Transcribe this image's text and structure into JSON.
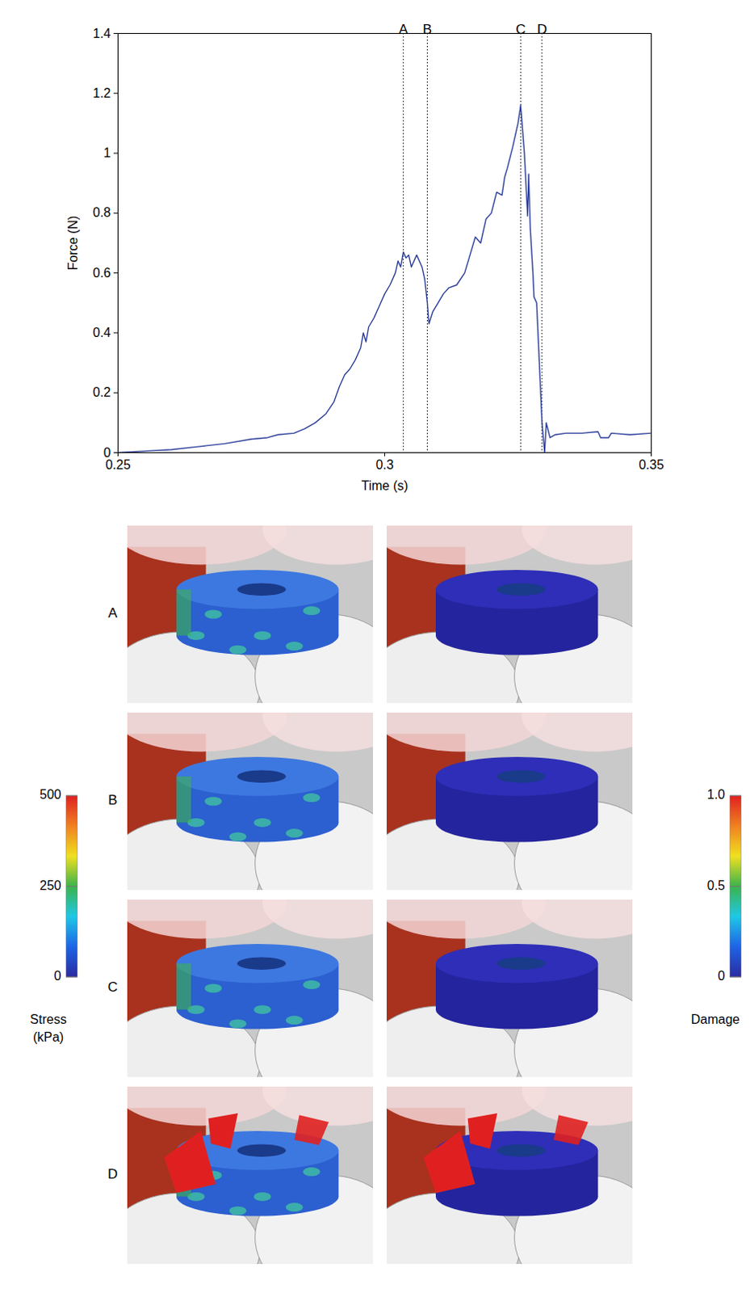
{
  "chart_data": {
    "type": "line",
    "x_label": "Time (s)",
    "y_label": "Force (N)",
    "x": [
      0.25,
      0.255,
      0.26,
      0.265,
      0.27,
      0.275,
      0.278,
      0.28,
      0.283,
      0.285,
      0.287,
      0.289,
      0.2905,
      0.2915,
      0.2925,
      0.2935,
      0.2945,
      0.2955,
      0.296,
      0.2965,
      0.297,
      0.298,
      0.299,
      0.3,
      0.301,
      0.302,
      0.3025,
      0.303,
      0.3035,
      0.304,
      0.3045,
      0.305,
      0.306,
      0.307,
      0.3075,
      0.308,
      0.3083,
      0.309,
      0.31,
      0.311,
      0.312,
      0.3135,
      0.315,
      0.316,
      0.317,
      0.318,
      0.319,
      0.32,
      0.321,
      0.322,
      0.3225,
      0.323,
      0.324,
      0.325,
      0.3255,
      0.3262,
      0.3268,
      0.327,
      0.3273,
      0.3278,
      0.328,
      0.3285,
      0.329,
      0.3295,
      0.33,
      0.3303,
      0.331,
      0.332,
      0.334,
      0.337,
      0.34,
      0.3405,
      0.342,
      0.3425,
      0.346,
      0.35
    ],
    "values": [
      0,
      0.005,
      0.01,
      0.02,
      0.03,
      0.045,
      0.05,
      0.06,
      0.065,
      0.08,
      0.1,
      0.13,
      0.17,
      0.22,
      0.26,
      0.28,
      0.31,
      0.35,
      0.4,
      0.37,
      0.42,
      0.45,
      0.49,
      0.53,
      0.56,
      0.6,
      0.64,
      0.62,
      0.67,
      0.65,
      0.66,
      0.62,
      0.66,
      0.62,
      0.58,
      0.5,
      0.43,
      0.47,
      0.5,
      0.53,
      0.55,
      0.56,
      0.6,
      0.66,
      0.72,
      0.7,
      0.78,
      0.8,
      0.87,
      0.86,
      0.92,
      0.95,
      1.02,
      1.1,
      1.16,
      1.0,
      0.79,
      0.93,
      0.75,
      0.6,
      0.52,
      0.5,
      0.3,
      0.1,
      0.0,
      0.1,
      0.05,
      0.06,
      0.065,
      0.065,
      0.07,
      0.05,
      0.05,
      0.065,
      0.06,
      0.065
    ],
    "color": "#2b3d9a",
    "xlim": [
      0.25,
      0.35
    ],
    "ylim": [
      0,
      1.4
    ],
    "xticks": [
      0.25,
      0.3,
      0.35
    ],
    "yticks": [
      0,
      0.2,
      0.4,
      0.6,
      0.8,
      1,
      1.2,
      1.4
    ],
    "grid": false,
    "annotations": [
      {
        "text": "A",
        "x": 0.3035
      },
      {
        "text": "B",
        "x": 0.308
      },
      {
        "text": "C",
        "x": 0.3255
      },
      {
        "text": "D",
        "x": 0.3295
      }
    ]
  },
  "panels": {
    "rows": [
      "A",
      "B",
      "C",
      "D"
    ],
    "stress_colorbar": {
      "label": "Stress (kPa)",
      "range": [
        0,
        500
      ],
      "ticks": [
        0,
        250,
        500
      ]
    },
    "damage_colorbar": {
      "label": "Damage",
      "range": [
        0,
        1
      ],
      "ticks": [
        0,
        0.5,
        {
          "value": 1,
          "label": "1.0"
        }
      ]
    }
  }
}
